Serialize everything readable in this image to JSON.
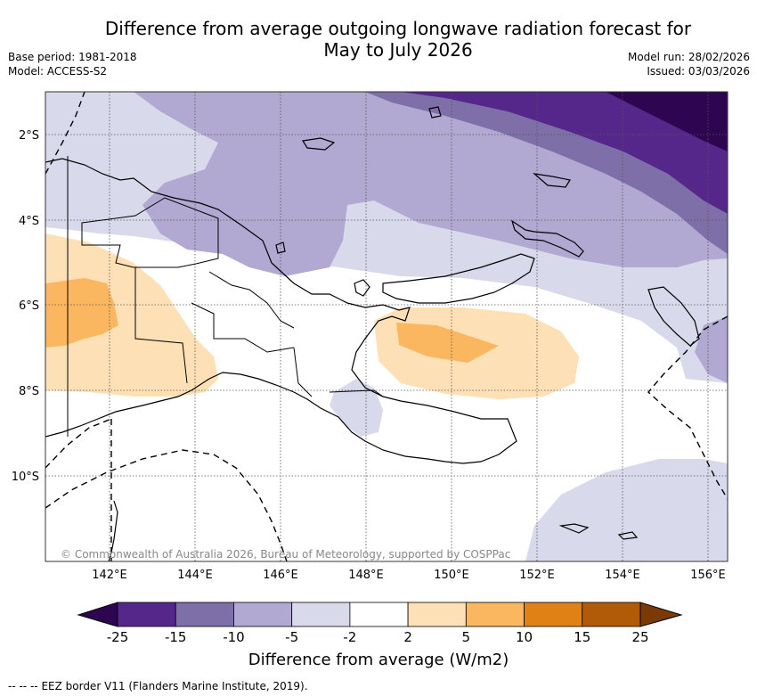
{
  "title_line1": "Difference from average outgoing longwave radiation forecast for",
  "title_line2": "May to July 2026",
  "base_period": "Base period: 1981-2018",
  "model": "Model: ACCESS-S2",
  "model_run": "Model run: 28/02/2026",
  "issued": "Issued: 03/03/2026",
  "lat_labels": [
    "2°S",
    "4°S",
    "6°S",
    "8°S",
    "10°S"
  ],
  "lon_labels": [
    "142°E",
    "144°E",
    "146°E",
    "148°E",
    "150°E",
    "152°E",
    "154°E",
    "156°E"
  ],
  "copyright": "© Commonwealth of Australia 2026, Bureau of Meteorology, supported by COSPPac",
  "colorbar": {
    "ticks": [
      "-25",
      "-15",
      "-10",
      "-5",
      "-2",
      "2",
      "5",
      "10",
      "15",
      "25"
    ],
    "colors": [
      "#2d0550",
      "#56278a",
      "#7f6fa8",
      "#b1a9d2",
      "#d8d9ea",
      "#ffffff",
      "#fde0b5",
      "#fbb660",
      "#e08115",
      "#b15a07",
      "#7a3a05"
    ],
    "title": "Difference from average (W/m2)"
  },
  "legend_note": "EEZ border V11 (Flanders Marine Institute, 2019).",
  "legend_symbol": "--  --  --"
}
